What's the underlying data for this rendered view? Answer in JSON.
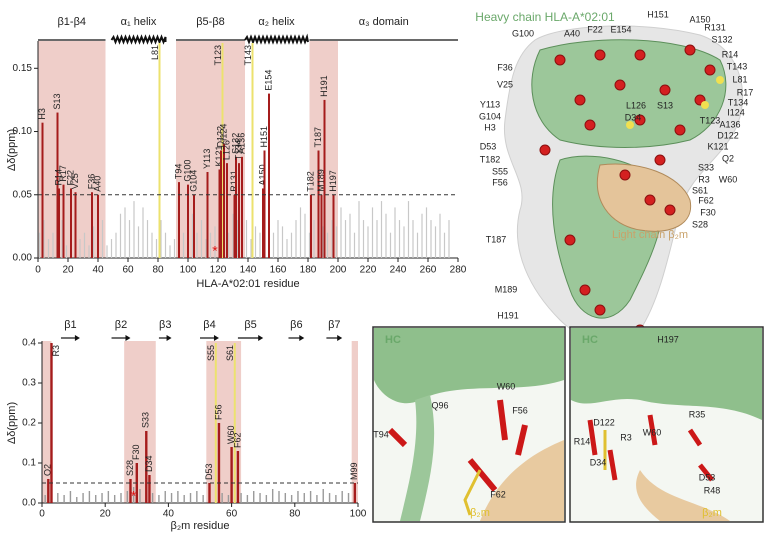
{
  "chart_data": [
    {
      "type": "bar",
      "ylabel": "Δδ(ppm)",
      "xlabel": "HLA-A*02:01 residue",
      "xlim": [
        0,
        280
      ],
      "ylim": [
        0,
        0.17
      ],
      "xticks": [
        0,
        20,
        40,
        60,
        80,
        100,
        120,
        140,
        160,
        180,
        200,
        220,
        240,
        260,
        280
      ],
      "yticks": [
        {
          "value": 0,
          "label": "0.00"
        },
        {
          "value": 0.05,
          "label": "0.05"
        },
        {
          "value": 0.1,
          "label": "0.10"
        },
        {
          "value": 0.15,
          "label": "0.15"
        }
      ],
      "threshold": 0.05,
      "shaded": [
        [
          0,
          45
        ],
        [
          92,
          138
        ],
        [
          181,
          200
        ]
      ],
      "domains": [
        {
          "label": "β1-β4",
          "range": [
            0,
            45
          ],
          "shape": "line"
        },
        {
          "label": "α₁ helix",
          "range": [
            49,
            85
          ],
          "shape": "helix"
        },
        {
          "label": "β5-β8",
          "range": [
            92,
            138
          ],
          "shape": "line"
        },
        {
          "label": "α₂ helix",
          "range": [
            138,
            180
          ],
          "shape": "helix"
        },
        {
          "label": "α₃ domain",
          "range": [
            181,
            280
          ],
          "shape": "line"
        }
      ],
      "gray_bars": {
        "color": "#c8c8c8",
        "x": [
          1,
          4,
          7,
          10,
          13,
          16,
          19,
          22,
          25,
          28,
          31,
          34,
          37,
          40,
          43,
          46,
          49,
          52,
          55,
          58,
          61,
          64,
          67,
          70,
          73,
          76,
          79,
          82,
          85,
          88,
          91,
          94,
          97,
          100,
          103,
          106,
          109,
          112,
          115,
          118,
          121,
          124,
          127,
          130,
          133,
          136,
          139,
          142,
          145,
          148,
          151,
          154,
          157,
          160,
          163,
          166,
          169,
          172,
          175,
          178,
          181,
          184,
          187,
          190,
          193,
          196,
          199,
          202,
          205,
          208,
          211,
          214,
          217,
          220,
          223,
          226,
          229,
          232,
          235,
          238,
          241,
          244,
          247,
          250,
          253,
          256,
          259,
          262,
          265,
          268,
          271,
          274
        ],
        "values": [
          0.02,
          0.03,
          0.015,
          0.02,
          0.025,
          0.03,
          0.01,
          0.02,
          0.035,
          0.015,
          0.02,
          0.01,
          0.025,
          0.02,
          0.03,
          0.01,
          0.015,
          0.02,
          0.035,
          0.04,
          0.03,
          0.045,
          0.025,
          0.04,
          0.03,
          0.02,
          0.015,
          0.03,
          0.02,
          0.01,
          0.015,
          0.03,
          0.02,
          0.025,
          0.035,
          0.02,
          0.03,
          0.015,
          0.02,
          0.025,
          0.04,
          0.03,
          0.02,
          0.035,
          0.03,
          0.02,
          0.03,
          0.015,
          0.025,
          0.02,
          0.03,
          0.01,
          0.02,
          0.03,
          0.025,
          0.015,
          0.02,
          0.03,
          0.04,
          0.035,
          0.02,
          0.03,
          0.015,
          0.025,
          0.02,
          0.03,
          0.025,
          0.04,
          0.03,
          0.035,
          0.02,
          0.045,
          0.03,
          0.025,
          0.04,
          0.03,
          0.045,
          0.035,
          0.02,
          0.04,
          0.03,
          0.025,
          0.045,
          0.03,
          0.02,
          0.035,
          0.04,
          0.03,
          0.025,
          0.035,
          0.02,
          0.03
        ]
      },
      "labeled_bars": {
        "color": "#a51c1c",
        "x": [
          3,
          13,
          14,
          17,
          22,
          25,
          36,
          40,
          94,
          100,
          104,
          113,
          121,
          122,
          124,
          126,
          131,
          132,
          134,
          136,
          150,
          151,
          154,
          182,
          187,
          189,
          191,
          197
        ],
        "values": [
          0.107,
          0.115,
          0.055,
          0.058,
          0.055,
          0.052,
          0.052,
          0.05,
          0.06,
          0.058,
          0.05,
          0.068,
          0.07,
          0.085,
          0.09,
          0.075,
          0.05,
          0.08,
          0.075,
          0.08,
          0.055,
          0.085,
          0.13,
          0.05,
          0.085,
          0.05,
          0.125,
          0.05
        ],
        "labels": [
          "H3",
          "S13",
          "R14",
          "R17",
          "F22",
          "V25",
          "F36",
          "A40",
          "T94",
          "G100",
          "G104",
          "Y113",
          "K121",
          "D122",
          "I124",
          "L126",
          "R131",
          "S132",
          "T134",
          "A136",
          "A150",
          "H151",
          "E154",
          "T182",
          "T187",
          "M189",
          "H191",
          "H197"
        ]
      },
      "marked_residues": {
        "color": "#ece26e",
        "x": [
          81,
          123,
          143
        ],
        "labels": [
          "L81",
          "T123",
          "T143"
        ]
      },
      "annotations": [
        {
          "text": "*",
          "x": 118
        }
      ]
    },
    {
      "type": "bar",
      "ylabel": "Δδ(ppm)",
      "xlabel": "β₂m residue",
      "xlim": [
        0,
        100
      ],
      "ylim": [
        0,
        0.4
      ],
      "xticks": [
        0,
        20,
        40,
        60,
        80,
        100
      ],
      "yticks": [
        {
          "value": 0,
          "label": "0.0"
        },
        {
          "value": 0.1,
          "label": "0.1"
        },
        {
          "value": 0.2,
          "label": "0.2"
        },
        {
          "value": 0.3,
          "label": "0.3"
        },
        {
          "value": 0.4,
          "label": "0.4"
        }
      ],
      "threshold": 0.05,
      "shaded": [
        [
          0,
          3
        ],
        [
          26,
          36
        ],
        [
          52,
          63
        ],
        [
          98,
          100
        ]
      ],
      "domains": [
        {
          "label": "β1",
          "range": [
            6,
            12
          ],
          "shape": "arrow"
        },
        {
          "label": "β2",
          "range": [
            22,
            28
          ],
          "shape": "arrow"
        },
        {
          "label": "β3",
          "range": [
            37,
            41
          ],
          "shape": "arrow"
        },
        {
          "label": "β4",
          "range": [
            50,
            56
          ],
          "shape": "arrow"
        },
        {
          "label": "β5",
          "range": [
            62,
            70
          ],
          "shape": "arrow"
        },
        {
          "label": "β6",
          "range": [
            78,
            83
          ],
          "shape": "arrow"
        },
        {
          "label": "β7",
          "range": [
            90,
            95
          ],
          "shape": "arrow"
        }
      ],
      "gray_bars": {
        "color": "#9a9a9a",
        "x": [
          1,
          3,
          5,
          7,
          9,
          11,
          13,
          15,
          17,
          19,
          21,
          23,
          25,
          27,
          29,
          31,
          33,
          35,
          37,
          39,
          41,
          43,
          45,
          47,
          49,
          51,
          53,
          55,
          57,
          59,
          61,
          63,
          65,
          67,
          69,
          71,
          73,
          75,
          77,
          79,
          81,
          83,
          85,
          87,
          89,
          91,
          93,
          95,
          97,
          99
        ],
        "values": [
          0.02,
          0.03,
          0.025,
          0.02,
          0.03,
          0.015,
          0.025,
          0.03,
          0.02,
          0.025,
          0.03,
          0.02,
          0.025,
          0.03,
          0.04,
          0.035,
          0.03,
          0.025,
          0.02,
          0.03,
          0.025,
          0.03,
          0.02,
          0.025,
          0.03,
          0.02,
          0.04,
          0.035,
          0.025,
          0.02,
          0.03,
          0.025,
          0.02,
          0.03,
          0.025,
          0.02,
          0.035,
          0.03,
          0.025,
          0.02,
          0.03,
          0.025,
          0.03,
          0.02,
          0.035,
          0.025,
          0.02,
          0.03,
          0.025,
          0.02
        ]
      },
      "labeled_bars": {
        "color": "#a51c1c",
        "x": [
          2,
          3,
          28,
          30,
          33,
          34,
          53,
          56,
          60,
          62,
          99
        ],
        "values": [
          0.06,
          0.4,
          0.06,
          0.1,
          0.18,
          0.07,
          0.05,
          0.2,
          0.14,
          0.13,
          0.05
        ],
        "labels": [
          "Q2",
          "R3",
          "S28",
          "F30",
          "S33",
          "D34",
          "D53",
          "F56",
          "W60",
          "F62",
          "M99"
        ]
      },
      "marked_residues": {
        "color": "#ece26e",
        "x": [
          55,
          61
        ],
        "labels": [
          "S55",
          "S61"
        ]
      },
      "annotations": [
        {
          "text": "*",
          "x": 29
        }
      ]
    }
  ],
  "structure": {
    "heavy_chain": "Heavy chain HLA-A*02:01",
    "light_chain": "Light chain β₂m",
    "residue_labels": [
      "H151",
      "A150",
      "G100",
      "A40",
      "F22",
      "E154",
      "R131",
      "S132",
      "R14",
      "F36",
      "T143",
      "L81",
      "V25",
      "R17",
      "T134",
      "Y113",
      "G104",
      "H3",
      "L126",
      "S13",
      "I124",
      "T123",
      "D34",
      "A136",
      "D122",
      "K121",
      "Q2",
      "D53",
      "S33",
      "W60",
      "R3",
      "T182",
      "S61",
      "S55",
      "F56",
      "F62",
      "F30",
      "S28",
      "T187",
      "M189",
      "H191",
      "H197"
    ]
  },
  "panels": [
    {
      "labels": [
        "HC",
        "T94",
        "Q96",
        "W60",
        "F56",
        "F62",
        "β₂m"
      ]
    },
    {
      "labels": [
        "HC",
        "R14",
        "D122",
        "W60",
        "R35",
        "R3",
        "D34",
        "D53",
        "R48",
        "β₂m"
      ]
    }
  ]
}
